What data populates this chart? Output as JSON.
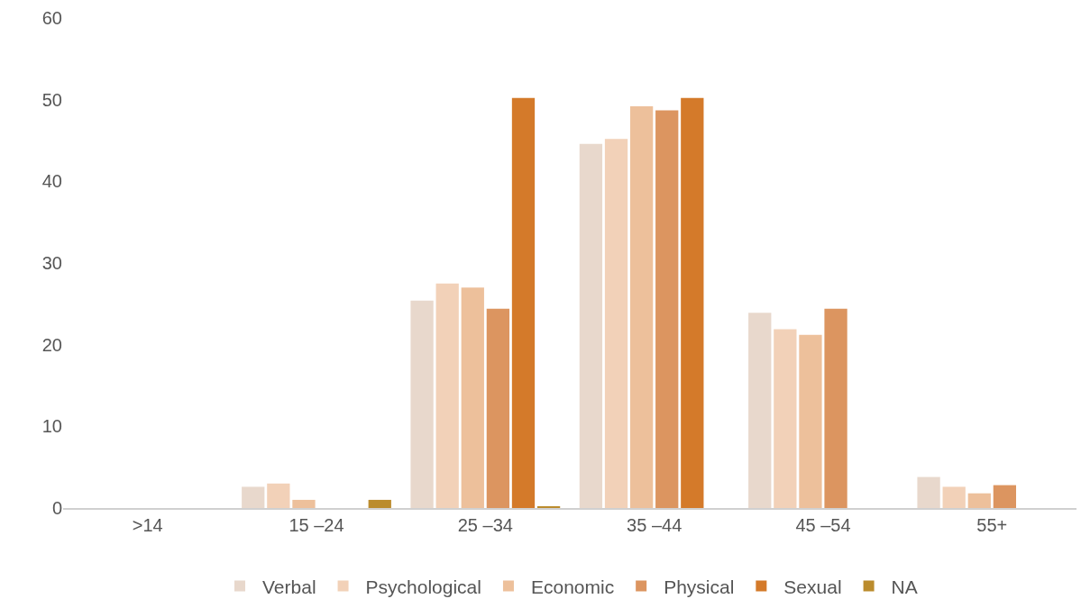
{
  "chart_data": {
    "type": "bar",
    "categories": [
      ">14",
      "15 –24",
      "25 –34",
      "35 –44",
      "45 –54",
      "55+"
    ],
    "series": [
      {
        "name": "Verbal",
        "color": "#e8d8cc",
        "values": [
          0,
          2.6,
          25.4,
          44.6,
          23.9,
          3.8
        ]
      },
      {
        "name": "Psychological",
        "color": "#f2d1b8",
        "values": [
          0,
          3.0,
          27.5,
          45.2,
          21.9,
          2.6
        ]
      },
      {
        "name": "Economic",
        "color": "#edc09b",
        "values": [
          0,
          1.0,
          27.0,
          49.2,
          21.2,
          1.8
        ]
      },
      {
        "name": "Physical",
        "color": "#dc9560",
        "values": [
          0,
          0,
          24.4,
          48.7,
          24.4,
          2.8
        ]
      },
      {
        "name": "Sexual",
        "color": "#d47a2a",
        "values": [
          0,
          0,
          50.2,
          50.2,
          0,
          0
        ]
      },
      {
        "name": "NA",
        "color": "#bb8c2d",
        "values": [
          0,
          1.0,
          0.2,
          0,
          0,
          0
        ]
      }
    ],
    "ylim": [
      0,
      60
    ],
    "yticks": [
      0,
      10,
      20,
      30,
      40,
      50,
      60
    ],
    "grid": false,
    "legend": "bottom"
  }
}
